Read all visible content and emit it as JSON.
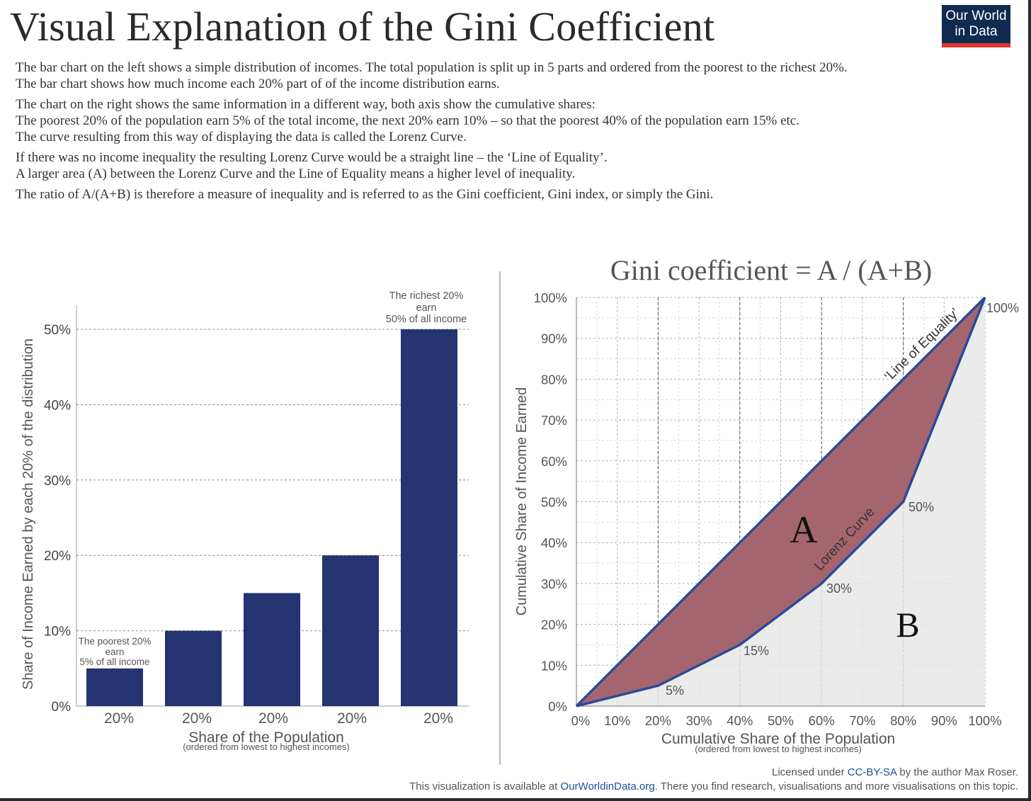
{
  "header": {
    "title": "Visual Explanation of the Gini Coefficient",
    "logo_line1": "Our World",
    "logo_line2": "in Data"
  },
  "intro": {
    "p1": [
      "The bar chart on the left shows a simple distribution of incomes. The total population is split up in 5 parts and ordered from the poorest to the richest 20%.",
      "The bar chart shows how much income each 20% part of of the income distribution earns."
    ],
    "p2": [
      "The chart on the right shows the same information in a different way, both axis show the cumulative shares:",
      "The poorest 20% of the population earn 5% of the total income, the next 20% earn 10% – so that the poorest 40% of the population earn 15% etc.",
      "The curve resulting from this way of displaying the data is called the Lorenz Curve."
    ],
    "p3": [
      "If there was no income inequality the resulting Lorenz Curve would be a straight line – the ‘Line of Equality’.",
      "A larger area (A) between the Lorenz Curve and the Line of Equality means a higher level of inequality."
    ],
    "p4": [
      "The ratio of A/(A+B) is therefore a measure of inequality and is referred to as the Gini coefficient, Gini index, or simply the Gini."
    ]
  },
  "chart_data": [
    {
      "type": "bar",
      "categories": [
        "20%",
        "20%",
        "20%",
        "20%",
        "20%"
      ],
      "values": [
        5,
        10,
        15,
        20,
        50
      ],
      "ylabel": "Share of Income Earned by each 20% of the distribution",
      "xlabel": "Share of the Population",
      "xlabel_sub": "(ordered from lowest to highest incomes)",
      "yticks": [
        "0%",
        "10%",
        "20%",
        "30%",
        "40%",
        "50%"
      ],
      "ytick_values": [
        0,
        10,
        20,
        30,
        40,
        50
      ],
      "ylim": [
        0,
        50
      ],
      "grid": "horizontal dashed",
      "bar_color": "#253370",
      "annotations": {
        "poorest": [
          "The poorest 20%",
          "earn",
          "5% of all income"
        ],
        "richest": [
          "The richest 20%",
          "earn",
          "50% of all income"
        ]
      }
    },
    {
      "type": "line",
      "title": "Gini coefficient = A / (A+B)",
      "x": [
        0,
        20,
        40,
        60,
        80,
        100
      ],
      "series": [
        {
          "name": "Lorenz Curve",
          "values": [
            0,
            5,
            15,
            30,
            50,
            100
          ]
        },
        {
          "name": "‘Line of Equality’",
          "values": [
            0,
            20,
            40,
            60,
            80,
            100
          ]
        }
      ],
      "point_labels": [
        "5%",
        "15%",
        "30%",
        "50%",
        "100%"
      ],
      "xticks": [
        "0%",
        "10%",
        "20%",
        "30%",
        "40%",
        "50%",
        "60%",
        "70%",
        "80%",
        "90%",
        "100%"
      ],
      "yticks": [
        "0%",
        "10%",
        "20%",
        "30%",
        "40%",
        "50%",
        "60%",
        "70%",
        "80%",
        "90%",
        "100%"
      ],
      "tick_values": [
        0,
        10,
        20,
        30,
        40,
        50,
        60,
        70,
        80,
        90,
        100
      ],
      "xlabel": "Cumulative Share of the Population",
      "xlabel_sub": "(ordered from lowest to highest incomes)",
      "ylabel": "Cumulative Share of Income Earned",
      "xlim": [
        0,
        100
      ],
      "ylim": [
        0,
        100
      ],
      "grid": "dashed",
      "area_labels": [
        "A",
        "B"
      ],
      "colors": {
        "area_a": "#a5656f",
        "area_b": "#e8e8e8",
        "line": "#2b4a9a"
      }
    }
  ],
  "footer": {
    "license_prefix": "Licensed under ",
    "license_link": "CC-BY-SA",
    "license_suffix": " by the author Max Roser.",
    "avail_prefix": "This visualization is available at ",
    "avail_link": "OurWorldinData.org",
    "avail_suffix": ". There you find research, visualisations and more visualisations on this topic."
  }
}
